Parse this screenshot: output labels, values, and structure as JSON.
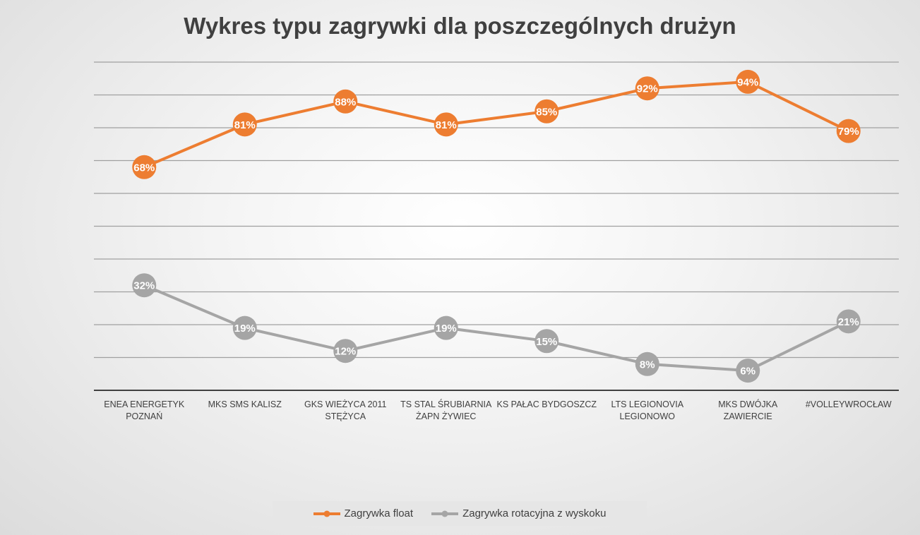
{
  "colors": {
    "float": "#ED7D31",
    "rotational": "#A5A5A5",
    "axis": "#404040"
  },
  "chart_data": {
    "type": "line",
    "title": "Wykres typu zagrywki dla poszczególnych drużyn",
    "xlabel": "",
    "ylabel": "",
    "ylim": [
      0,
      100
    ],
    "grid": true,
    "legend_position": "bottom",
    "categories": [
      "ENEA ENERGETYK POZNAŃ",
      "MKS SMS KALISZ",
      "GKS WIEŻYCA 2011 STĘŻYCA",
      "TS STAL ŚRUBIARNIA ŻAPN ŻYWIEC",
      "KS PAŁAC BYDGOSZCZ",
      "LTS LEGIONOVIA LEGIONOWO",
      "MKS DWÓJKA ZAWIERCIE",
      "#VOLLEYWROCŁAW"
    ],
    "series": [
      {
        "name": "Zagrywka float",
        "color": "#ED7D31",
        "values": [
          68,
          81,
          88,
          81,
          85,
          92,
          94,
          79
        ]
      },
      {
        "name": "Zagrywka rotacyjna z wyskoku",
        "color": "#A5A5A5",
        "values": [
          32,
          19,
          12,
          19,
          15,
          8,
          6,
          21
        ]
      }
    ]
  }
}
